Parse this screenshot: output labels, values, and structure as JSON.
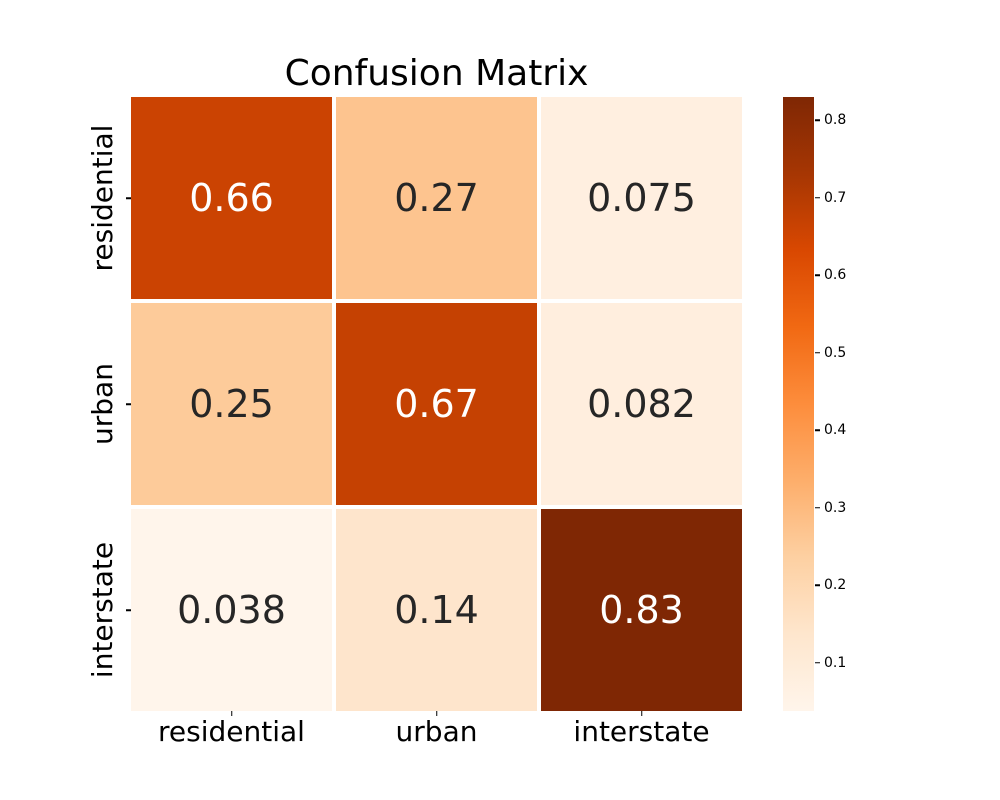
{
  "chart_data": {
    "type": "heatmap",
    "title": "Confusion Matrix",
    "x_tick_labels": [
      "residential",
      "urban",
      "interstate"
    ],
    "y_tick_labels": [
      "residential",
      "urban",
      "interstate"
    ],
    "matrix": [
      [
        0.66,
        0.27,
        0.075
      ],
      [
        0.25,
        0.67,
        0.082
      ],
      [
        0.038,
        0.14,
        0.83
      ]
    ],
    "cell_labels": [
      [
        "0.66",
        "0.27",
        "0.075"
      ],
      [
        "0.25",
        "0.67",
        "0.082"
      ],
      [
        "0.038",
        "0.14",
        "0.83"
      ]
    ],
    "vmin": 0.038,
    "vmax": 0.83,
    "colormap": {
      "name": "Oranges",
      "stops": [
        "#fff5eb",
        "#fee6cd",
        "#fdd0a2",
        "#fdae6b",
        "#fd8d3c",
        "#f16913",
        "#d94801",
        "#a63603",
        "#7f2704"
      ]
    },
    "annotation_dark_color": "#262626",
    "annotation_light_color": "#ffffff",
    "cell_line_color": "#ffffff",
    "background_color": "#ffffff",
    "colorbar_tick_labels": [
      "0.1",
      "0.2",
      "0.3",
      "0.4",
      "0.5",
      "0.6",
      "0.7",
      "0.8"
    ],
    "colorbar_tick_values": [
      0.1,
      0.2,
      0.3,
      0.4,
      0.5,
      0.6,
      0.7,
      0.8
    ],
    "legend_position": "right-colorbar",
    "grid": false
  }
}
